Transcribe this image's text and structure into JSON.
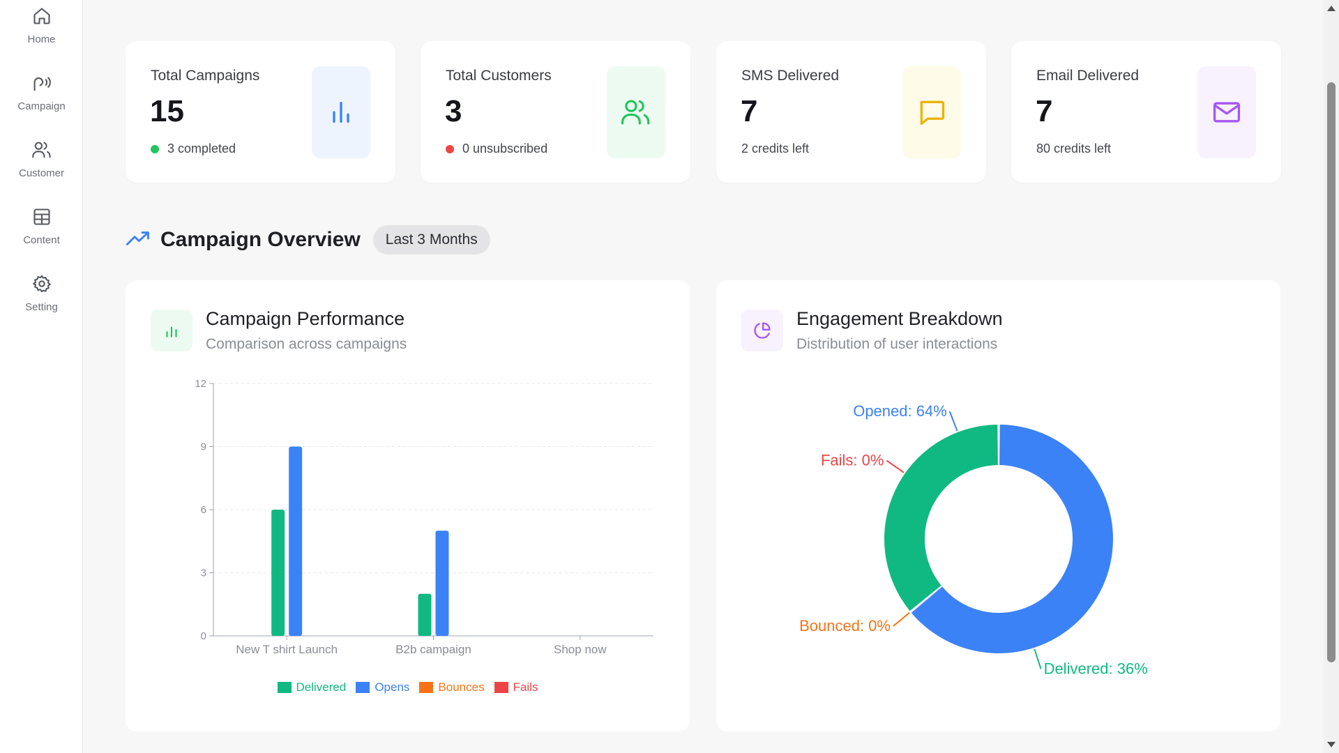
{
  "sidebar": {
    "items": [
      {
        "label": "Home",
        "icon": "home-icon"
      },
      {
        "label": "Campaign",
        "icon": "campaign-icon"
      },
      {
        "label": "Customer",
        "icon": "users-icon"
      },
      {
        "label": "Content",
        "icon": "grid-icon"
      },
      {
        "label": "Setting",
        "icon": "gear-icon"
      }
    ]
  },
  "stats": [
    {
      "title": "Total Campaigns",
      "value": "15",
      "sub": "3 completed",
      "dot_color": "#22c55e",
      "icon": "bar-chart-icon",
      "icon_color": "#3b82f6",
      "icon_bg": "#eef4fe"
    },
    {
      "title": "Total Customers",
      "value": "3",
      "sub": "0 unsubscribed",
      "dot_color": "#ef4444",
      "icon": "users-icon",
      "icon_color": "#22c55e",
      "icon_bg": "#edfaf1"
    },
    {
      "title": "SMS Delivered",
      "value": "7",
      "sub": "2 credits left",
      "icon": "message-icon",
      "icon_color": "#eab308",
      "icon_bg": "#fefbe8"
    },
    {
      "title": "Email Delivered",
      "value": "7",
      "sub": "80 credits left",
      "icon": "mail-icon",
      "icon_color": "#a855f7",
      "icon_bg": "#f8f2fe"
    }
  ],
  "overview": {
    "title": "Campaign Overview",
    "period": "Last 3 Months"
  },
  "performance": {
    "title": "Campaign Performance",
    "subtitle": "Comparison across campaigns",
    "legend": [
      {
        "name": "Delivered",
        "color": "#10b981"
      },
      {
        "name": "Opens",
        "color": "#3b82f6"
      },
      {
        "name": "Bounces",
        "color": "#f97316"
      },
      {
        "name": "Fails",
        "color": "#ef4444"
      }
    ]
  },
  "engagement": {
    "title": "Engagement Breakdown",
    "subtitle": "Distribution of user interactions"
  },
  "chart_data": [
    {
      "type": "bar",
      "categories": [
        "New T shirt Launch",
        "B2b campaign",
        "Shop now"
      ],
      "series": [
        {
          "name": "Delivered",
          "values": [
            6,
            2,
            0
          ],
          "color": "#10b981"
        },
        {
          "name": "Opens",
          "values": [
            9,
            5,
            0
          ],
          "color": "#3b82f6"
        },
        {
          "name": "Bounces",
          "values": [
            0,
            0,
            0
          ],
          "color": "#f97316"
        },
        {
          "name": "Fails",
          "values": [
            0,
            0,
            0
          ],
          "color": "#ef4444"
        }
      ],
      "ylim": [
        0,
        12
      ],
      "yticks": [
        0,
        3,
        6,
        9,
        12
      ],
      "grid": true,
      "legend": "bottom"
    },
    {
      "type": "pie",
      "donut": true,
      "slices": [
        {
          "name": "Opened",
          "value": 64,
          "label": "Opened: 64%",
          "color": "#3b82f6"
        },
        {
          "name": "Bounced",
          "value": 0,
          "label": "Bounced: 0%",
          "color": "#f97316"
        },
        {
          "name": "Delivered",
          "value": 36,
          "label": "Delivered: 36%",
          "color": "#10b981"
        },
        {
          "name": "Fails",
          "value": 0,
          "label": "Fails: 0%",
          "color": "#ef4444"
        }
      ]
    }
  ]
}
